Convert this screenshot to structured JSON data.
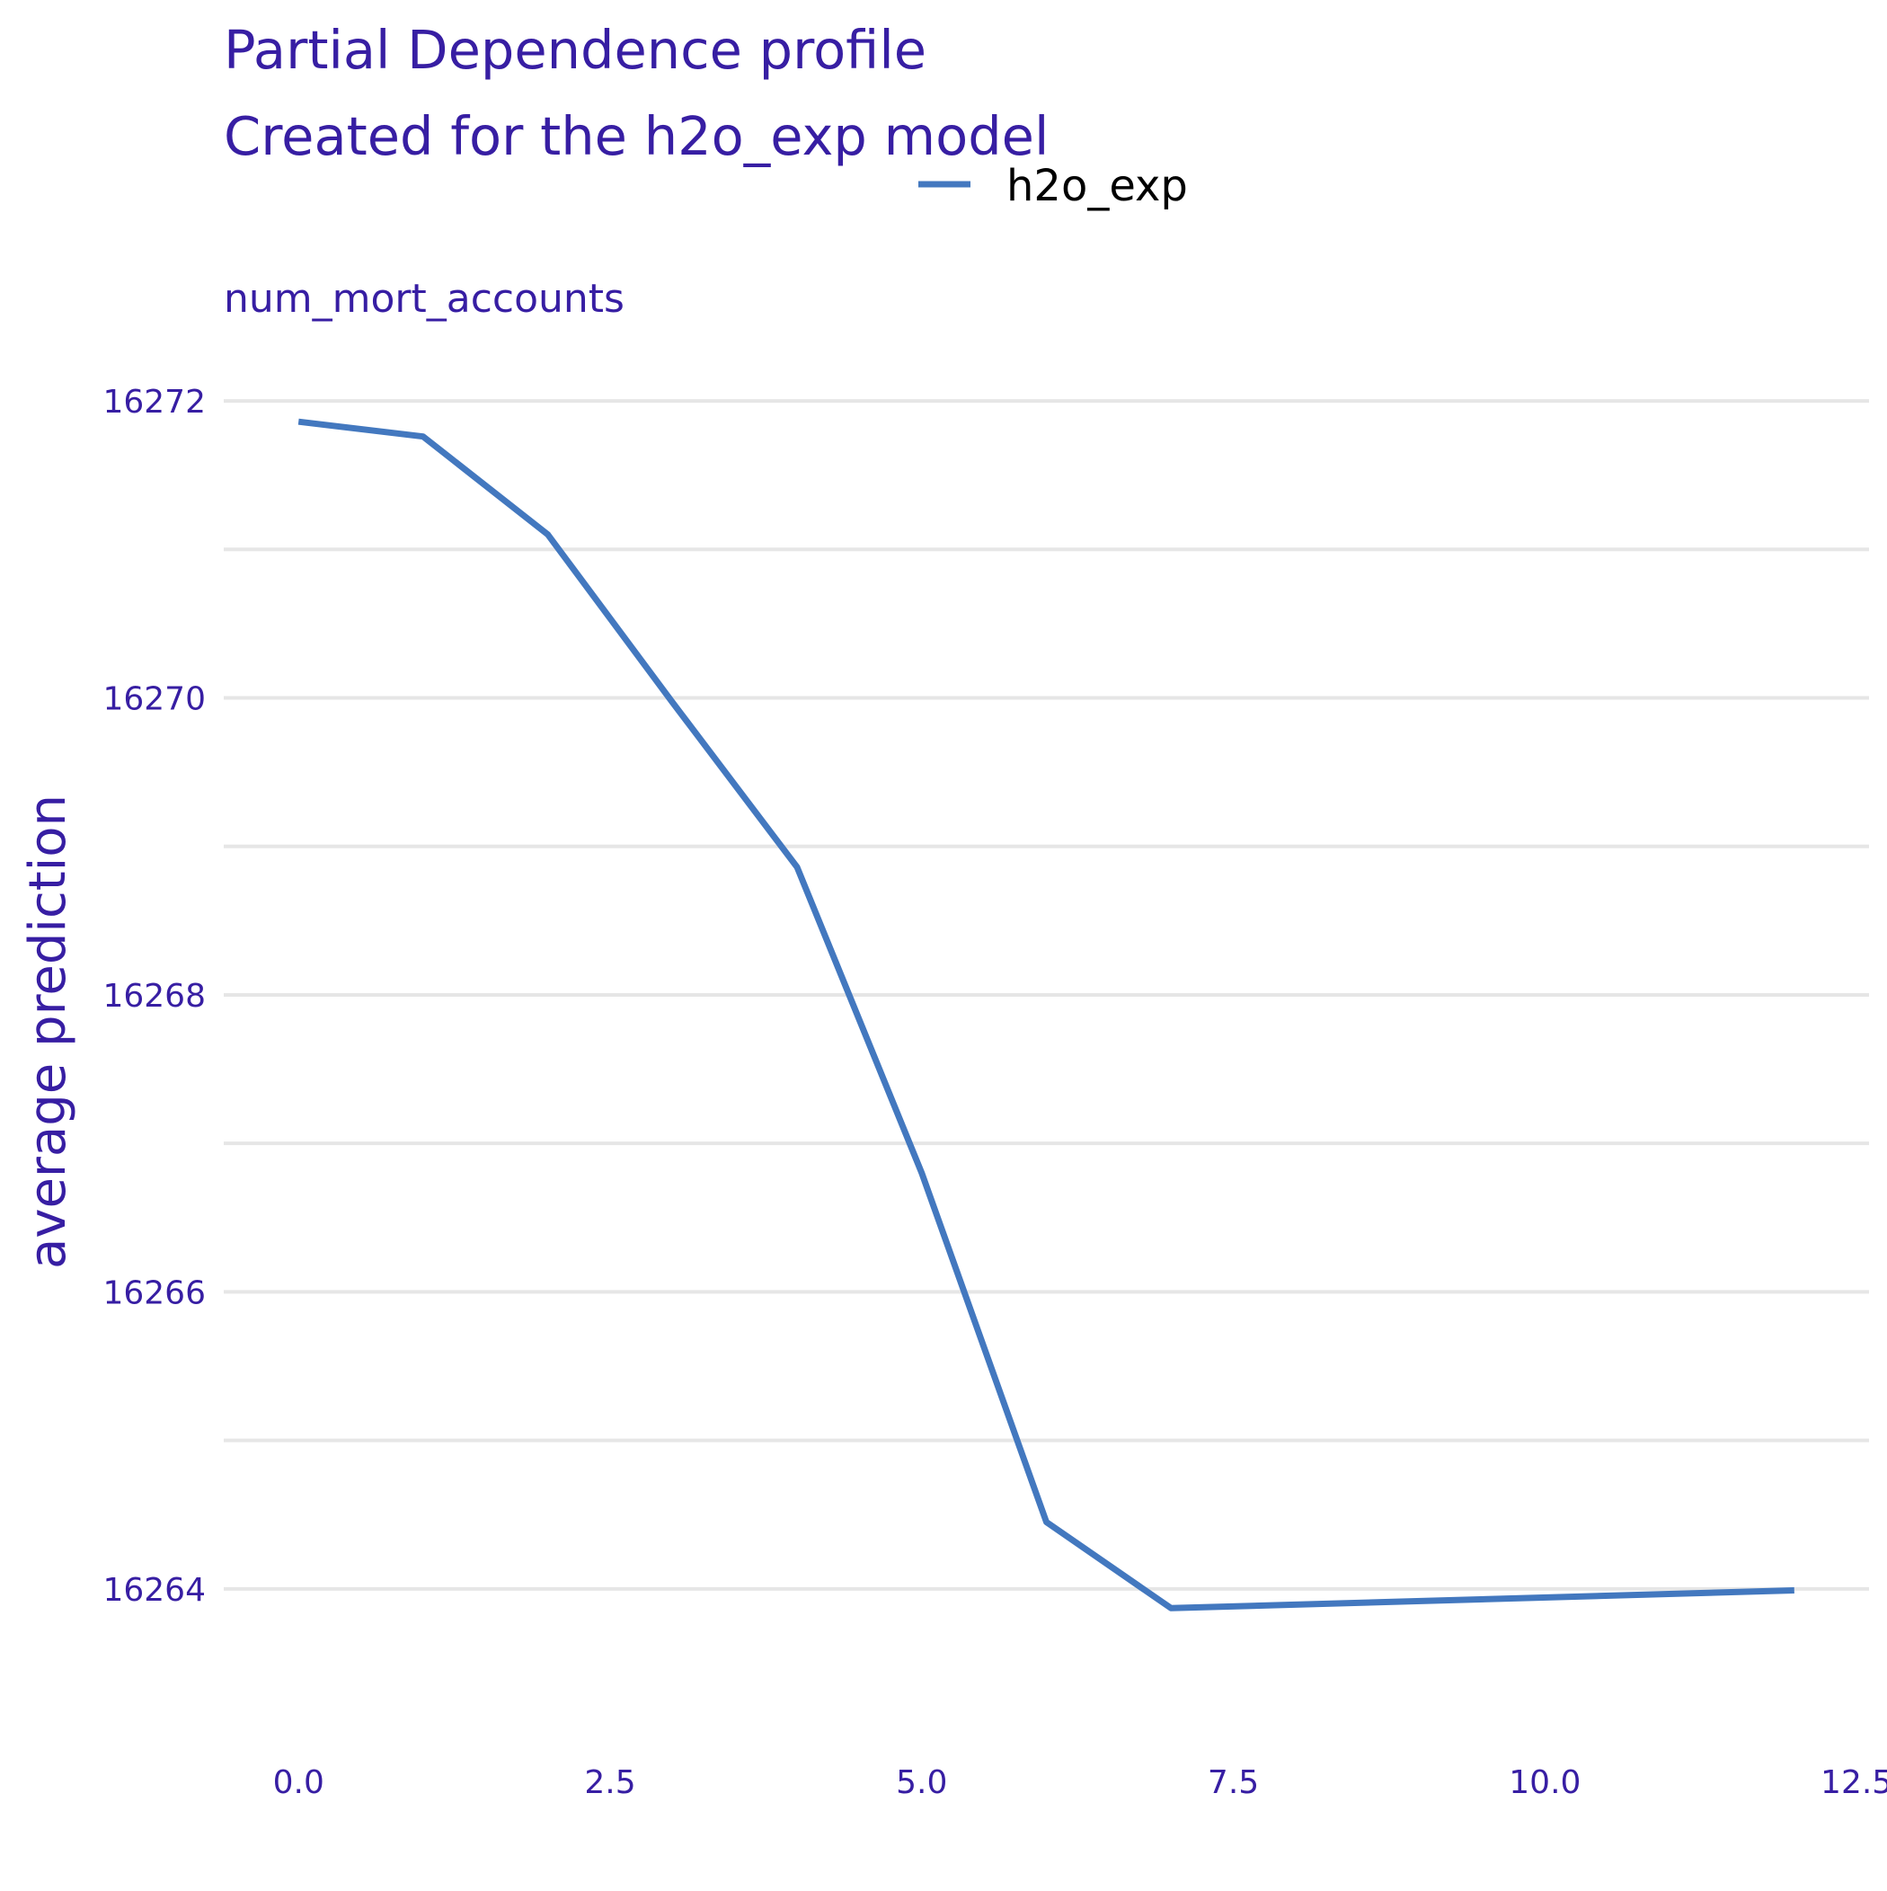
{
  "chart_data": {
    "type": "line",
    "title": "Partial Dependence profile",
    "subtitle": "Created for the h2o_exp model",
    "panel_label": "num_mort_accounts",
    "xlabel": "",
    "ylabel": "average prediction",
    "xlim": [
      -0.6,
      12.6
    ],
    "ylim": [
      16263.2,
      16272.4
    ],
    "x_ticks": [
      0,
      2.5,
      5,
      7.5,
      10,
      12.5
    ],
    "x_tick_labels": [
      "0.0",
      "2.5",
      "5.0",
      "7.5",
      "10.0",
      "12.5"
    ],
    "y_ticks": [
      16264,
      16266,
      16268,
      16270,
      16272
    ],
    "y_tick_labels": [
      "16264",
      "16266",
      "16268",
      "16270",
      "16272"
    ],
    "y_minor_gridlines": [
      16265,
      16267,
      16269,
      16271
    ],
    "grid": true,
    "legend_position": "top",
    "series": [
      {
        "name": "h2o_exp",
        "color": "#4378bf",
        "x": [
          0,
          1,
          2,
          3,
          4,
          5,
          6,
          7,
          12
        ],
        "y": [
          16271.86,
          16271.76,
          16271.1,
          16269.97,
          16268.86,
          16266.8,
          16264.45,
          16263.87,
          16263.99
        ]
      }
    ],
    "colors": {
      "text": "#371ea3",
      "grid": "#e6e6e6",
      "legend_text": "#000000"
    }
  }
}
